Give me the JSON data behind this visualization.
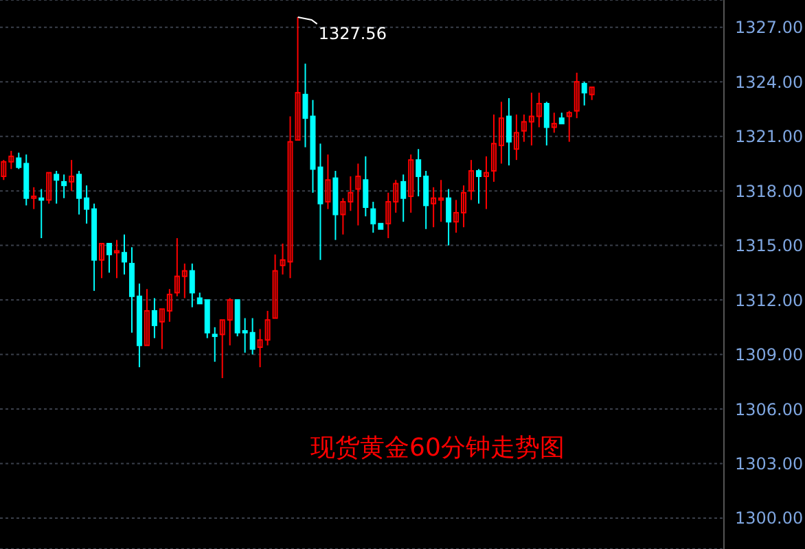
{
  "chart_data": {
    "type": "candlestick",
    "title": "现货黄金60分钟走势图",
    "categories": [
      null,
      null,
      null,
      null,
      null,
      null,
      null,
      null,
      null,
      null,
      null,
      null,
      null,
      null,
      null,
      null,
      null,
      null,
      null,
      null,
      null,
      null,
      null,
      null,
      null,
      null,
      null,
      null,
      null,
      null,
      null,
      null,
      null,
      null,
      null,
      null,
      null,
      null,
      null,
      null,
      null,
      null,
      null,
      null,
      null,
      null,
      null,
      null,
      null,
      null,
      null,
      null,
      null,
      null,
      null,
      null,
      null,
      null,
      null,
      null,
      null,
      null,
      null,
      null,
      null,
      null,
      null,
      null,
      null,
      null,
      null,
      null,
      null,
      null,
      null,
      null,
      null,
      null,
      null,
      null,
      null,
      null,
      null,
      null,
      null,
      null,
      null,
      null,
      null,
      null,
      null,
      null,
      null,
      null,
      null,
      null
    ],
    "ohlc": [
      [
        1318.8,
        1319.7,
        1318.6,
        1319.6
      ],
      [
        1319.6,
        1320.2,
        1319.2,
        1319.9
      ],
      [
        1319.8,
        1320.1,
        1319.2,
        1319.3
      ],
      [
        1319.5,
        1320.0,
        1317.2,
        1317.6
      ],
      [
        1317.6,
        1318.2,
        1317.0,
        1317.7
      ],
      [
        1317.6,
        1318.1,
        1315.4,
        1317.5
      ],
      [
        1317.5,
        1319.0,
        1317.3,
        1319.0
      ],
      [
        1318.9,
        1319.1,
        1317.3,
        1318.6
      ],
      [
        1318.5,
        1318.9,
        1317.6,
        1318.3
      ],
      [
        1318.5,
        1319.7,
        1318.0,
        1318.8
      ],
      [
        1318.9,
        1319.1,
        1316.7,
        1317.6
      ],
      [
        1317.6,
        1318.3,
        1316.2,
        1317.0
      ],
      [
        1317.0,
        1317.3,
        1312.5,
        1314.2
      ],
      [
        1314.2,
        1315.1,
        1313.2,
        1315.1
      ],
      [
        1315.1,
        1315.1,
        1313.5,
        1314.5
      ],
      [
        1314.6,
        1315.3,
        1313.2,
        1314.7
      ],
      [
        1314.6,
        1315.6,
        1313.4,
        1314.1
      ],
      [
        1314.0,
        1314.9,
        1310.2,
        1312.2
      ],
      [
        1312.2,
        1312.9,
        1308.3,
        1309.5
      ],
      [
        1309.5,
        1312.6,
        1309.5,
        1311.4
      ],
      [
        1311.4,
        1312.1,
        1309.9,
        1310.6
      ],
      [
        1310.8,
        1311.5,
        1309.3,
        1311.5
      ],
      [
        1311.4,
        1312.6,
        1310.8,
        1312.3
      ],
      [
        1312.4,
        1315.4,
        1312.2,
        1313.3
      ],
      [
        1313.3,
        1314.0,
        1312.1,
        1313.6
      ],
      [
        1313.6,
        1314.0,
        1311.6,
        1312.4
      ],
      [
        1312.1,
        1312.4,
        1311.8,
        1311.8
      ],
      [
        1312.0,
        1312.0,
        1309.9,
        1310.2
      ],
      [
        1310.1,
        1310.5,
        1308.6,
        1310.0
      ],
      [
        1310.1,
        1310.9,
        1307.7,
        1310.9
      ],
      [
        1310.9,
        1312.1,
        1309.5,
        1312.0
      ],
      [
        1312.0,
        1312.0,
        1310.0,
        1310.2
      ],
      [
        1310.3,
        1311.0,
        1309.1,
        1310.2
      ],
      [
        1310.2,
        1311.0,
        1309.0,
        1309.3
      ],
      [
        1309.4,
        1310.4,
        1308.3,
        1309.8
      ],
      [
        1309.8,
        1311.4,
        1309.5,
        1310.9
      ],
      [
        1311.0,
        1314.5,
        1311.0,
        1313.6
      ],
      [
        1313.9,
        1315.1,
        1313.4,
        1314.2
      ],
      [
        1314.1,
        1322.1,
        1313.2,
        1320.7
      ],
      [
        1320.8,
        1327.56,
        1320.8,
        1323.4
      ],
      [
        1323.3,
        1325.0,
        1320.4,
        1322.0
      ],
      [
        1322.1,
        1323.0,
        1317.9,
        1319.2
      ],
      [
        1319.3,
        1320.6,
        1314.2,
        1317.3
      ],
      [
        1317.4,
        1320.0,
        1317.0,
        1318.6
      ],
      [
        1318.7,
        1319.1,
        1315.3,
        1316.7
      ],
      [
        1316.7,
        1317.6,
        1315.6,
        1317.4
      ],
      [
        1317.4,
        1318.8,
        1316.9,
        1317.9
      ],
      [
        1318.1,
        1319.5,
        1316.1,
        1318.8
      ],
      [
        1318.6,
        1319.9,
        1316.6,
        1317.1
      ],
      [
        1317.0,
        1317.4,
        1315.7,
        1316.2
      ],
      [
        1316.2,
        1316.2,
        1315.9,
        1315.9
      ],
      [
        1316.2,
        1317.9,
        1315.4,
        1317.4
      ],
      [
        1317.4,
        1318.6,
        1316.8,
        1318.4
      ],
      [
        1318.5,
        1318.9,
        1316.3,
        1317.6
      ],
      [
        1317.7,
        1320.0,
        1316.8,
        1319.7
      ],
      [
        1319.7,
        1320.3,
        1317.7,
        1318.8
      ],
      [
        1318.8,
        1319.1,
        1315.9,
        1317.2
      ],
      [
        1317.3,
        1318.2,
        1316.0,
        1317.6
      ],
      [
        1317.5,
        1318.6,
        1316.3,
        1317.6
      ],
      [
        1317.6,
        1318.1,
        1315.0,
        1316.3
      ],
      [
        1316.3,
        1317.5,
        1315.7,
        1316.8
      ],
      [
        1316.8,
        1318.3,
        1316.0,
        1317.9
      ],
      [
        1318.0,
        1319.7,
        1317.5,
        1319.1
      ],
      [
        1319.1,
        1319.2,
        1317.3,
        1318.8
      ],
      [
        1318.8,
        1319.9,
        1317.0,
        1319.0
      ],
      [
        1319.1,
        1322.2,
        1318.5,
        1320.6
      ],
      [
        1320.5,
        1322.9,
        1319.5,
        1322.0
      ],
      [
        1322.1,
        1323.1,
        1319.4,
        1320.7
      ],
      [
        1320.3,
        1322.2,
        1319.7,
        1321.2
      ],
      [
        1321.3,
        1322.2,
        1320.7,
        1321.8
      ],
      [
        1321.8,
        1323.4,
        1320.5,
        1322.1
      ],
      [
        1322.1,
        1323.4,
        1321.5,
        1322.8
      ],
      [
        1322.8,
        1322.9,
        1320.5,
        1321.5
      ],
      [
        1321.5,
        1322.3,
        1321.2,
        1321.7
      ],
      [
        1322.0,
        1322.3,
        1321.7,
        1321.7
      ],
      [
        1322.1,
        1322.4,
        1320.7,
        1322.3
      ],
      [
        1322.4,
        1324.5,
        1322.0,
        1324.0
      ],
      [
        1323.9,
        1324.0,
        1322.7,
        1323.4
      ],
      [
        1323.3,
        1323.7,
        1323.0,
        1323.7
      ],
      null,
      null,
      null,
      null,
      null,
      null,
      null,
      null,
      null,
      null,
      null,
      null,
      null,
      null,
      null,
      null,
      null
    ],
    "colors": [
      "#ff0000",
      "#ff0000",
      "#00ffff",
      "#00ffff",
      "#ff0000",
      "#00ffff",
      "#ff0000",
      "#00ffff",
      "#00ffff",
      "#ff0000",
      "#00ffff",
      "#00ffff",
      "#00ffff",
      "#ff0000",
      "#00ffff",
      "#ff0000",
      "#00ffff",
      "#00ffff",
      "#00ffff",
      "#ff0000",
      "#00ffff",
      "#ff0000",
      "#ff0000",
      "#ff0000",
      "#ff0000",
      "#00ffff",
      "#00ffff",
      "#00ffff",
      "#00ffff",
      "#ff0000",
      "#ff0000",
      "#00ffff",
      "#00ffff",
      "#00ffff",
      "#ff0000",
      "#ff0000",
      "#ff0000",
      "#ff0000",
      "#ff0000",
      "#ff0000",
      "#00ffff",
      "#00ffff",
      "#00ffff",
      "#ff0000",
      "#00ffff",
      "#ff0000",
      "#ff0000",
      "#ff0000",
      "#00ffff",
      "#00ffff",
      "#00ffff",
      "#ff0000",
      "#ff0000",
      "#00ffff",
      "#ff0000",
      "#00ffff",
      "#00ffff",
      "#ff0000",
      "#ff0000",
      "#00ffff",
      "#ff0000",
      "#ff0000",
      "#ff0000",
      "#00ffff",
      "#ff0000",
      "#ff0000",
      "#ff0000",
      "#00ffff",
      "#ff0000",
      "#ff0000",
      "#ff0000",
      "#ff0000",
      "#00ffff",
      "#ff0000",
      "#00ffff",
      "#ff0000",
      "#ff0000",
      "#00ffff",
      "#ff0000",
      null,
      null,
      null,
      null,
      null,
      null,
      null,
      null,
      null,
      null,
      null,
      null,
      null,
      null,
      null,
      null,
      null
    ],
    "ylim": [
      1298.3,
      1328.5
    ],
    "yticks": [
      {
        "value": 1300,
        "label": "1300.00"
      },
      {
        "value": 1303,
        "label": "1303.00"
      },
      {
        "value": 1306,
        "label": "1306.00"
      },
      {
        "value": 1309,
        "label": "1309.00"
      },
      {
        "value": 1312,
        "label": "1312.00"
      },
      {
        "value": 1315,
        "label": "1315.00"
      },
      {
        "value": 1318,
        "label": "1318.00"
      },
      {
        "value": 1321,
        "label": "1321.00"
      },
      {
        "value": 1324,
        "label": "1324.00"
      },
      {
        "value": 1327,
        "label": "1327.00"
      }
    ],
    "annotations": [
      "1327.56"
    ],
    "grid": "y",
    "tick_labels": "y"
  }
}
